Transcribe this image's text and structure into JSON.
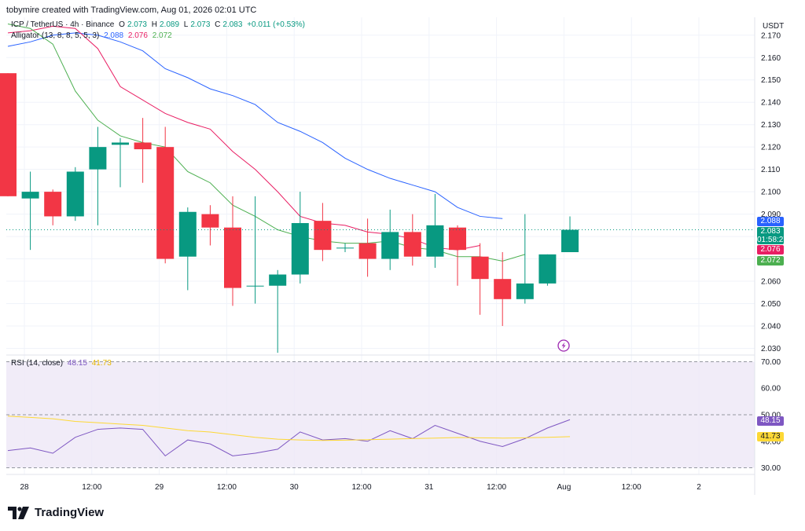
{
  "header": {
    "text": "tobymire created with TradingView.com, Aug 01, 2026 02:01 UTC"
  },
  "price_legend": {
    "symbol": "ICP / TetherUS · 4h · Binance",
    "o_label": "O",
    "o": "2.073",
    "h_label": "H",
    "h": "2.089",
    "l_label": "L",
    "l": "2.073",
    "c_label": "C",
    "c": "2.083",
    "change": "+0.011 (+0.53%)"
  },
  "alligator_legend": {
    "label": "Alligator (13, 8, 8, 5, 5, 3)",
    "jaw": "2.088",
    "teeth": "2.076",
    "lips": "2.072"
  },
  "rsi_legend": {
    "label": "RSI (14, close)",
    "rsi": "48.15",
    "ma": "41.73"
  },
  "currency": "USDT",
  "price_tags": {
    "jaw": "2.088",
    "close": "2.083",
    "countdown": "01:58:27",
    "teeth": "2.076",
    "lips": "2.072",
    "rsi": "48.15",
    "rsi_ma": "41.73"
  },
  "footer": {
    "brand": "TradingView"
  },
  "colors": {
    "up": "#089981",
    "down": "#f23645",
    "jaw": "#2962ff",
    "teeth": "#e91e63",
    "lips": "#4caf50",
    "rsi": "#7e57c2",
    "rsi_ma": "#fdd835",
    "rsi_band": "#ede7f6"
  },
  "chart_data": [
    {
      "type": "candlestick",
      "title": "ICP / TetherUS · 4h · Binance",
      "x_ticks": [
        "28",
        "12:00",
        "29",
        "12:00",
        "30",
        "12:00",
        "31",
        "12:00",
        "Aug",
        "12:00",
        "2"
      ],
      "y_ticks": [
        "2.170",
        "2.160",
        "2.150",
        "2.140",
        "2.130",
        "2.120",
        "2.110",
        "2.100",
        "2.090",
        "2.080",
        "2.070",
        "2.060",
        "2.050",
        "2.040",
        "2.030"
      ],
      "ylim": [
        2.027,
        2.178
      ],
      "candles": [
        {
          "o": 2.153,
          "h": 2.153,
          "l": 2.098,
          "c": 2.098
        },
        {
          "o": 2.097,
          "h": 2.109,
          "l": 2.074,
          "c": 2.1
        },
        {
          "o": 2.1,
          "h": 2.101,
          "l": 2.085,
          "c": 2.089
        },
        {
          "o": 2.089,
          "h": 2.111,
          "l": 2.087,
          "c": 2.109
        },
        {
          "o": 2.11,
          "h": 2.129,
          "l": 2.085,
          "c": 2.12
        },
        {
          "o": 2.121,
          "h": 2.124,
          "l": 2.102,
          "c": 2.122
        },
        {
          "o": 2.122,
          "h": 2.133,
          "l": 2.104,
          "c": 2.119
        },
        {
          "o": 2.12,
          "h": 2.129,
          "l": 2.068,
          "c": 2.07
        },
        {
          "o": 2.071,
          "h": 2.093,
          "l": 2.056,
          "c": 2.091
        },
        {
          "o": 2.09,
          "h": 2.094,
          "l": 2.076,
          "c": 2.084
        },
        {
          "o": 2.084,
          "h": 2.098,
          "l": 2.049,
          "c": 2.057
        },
        {
          "o": 2.058,
          "h": 2.098,
          "l": 2.05,
          "c": 2.058
        },
        {
          "o": 2.058,
          "h": 2.065,
          "l": 2.028,
          "c": 2.063
        },
        {
          "o": 2.063,
          "h": 2.1,
          "l": 2.059,
          "c": 2.086
        },
        {
          "o": 2.087,
          "h": 2.095,
          "l": 2.069,
          "c": 2.074
        },
        {
          "o": 2.075,
          "h": 2.077,
          "l": 2.073,
          "c": 2.075
        },
        {
          "o": 2.077,
          "h": 2.088,
          "l": 2.062,
          "c": 2.07
        },
        {
          "o": 2.07,
          "h": 2.092,
          "l": 2.065,
          "c": 2.082
        },
        {
          "o": 2.082,
          "h": 2.09,
          "l": 2.067,
          "c": 2.071
        },
        {
          "o": 2.071,
          "h": 2.099,
          "l": 2.066,
          "c": 2.085
        },
        {
          "o": 2.084,
          "h": 2.085,
          "l": 2.058,
          "c": 2.074
        },
        {
          "o": 2.071,
          "h": 2.077,
          "l": 2.045,
          "c": 2.061
        },
        {
          "o": 2.061,
          "h": 2.073,
          "l": 2.04,
          "c": 2.052
        },
        {
          "o": 2.052,
          "h": 2.09,
          "l": 2.05,
          "c": 2.059
        },
        {
          "o": 2.059,
          "h": 2.072,
          "l": 2.058,
          "c": 2.072
        },
        {
          "o": 2.073,
          "h": 2.089,
          "l": 2.073,
          "c": 2.083
        }
      ],
      "series": [
        {
          "key": "jaw",
          "start": 0,
          "values": [
            2.165,
            2.167,
            2.17,
            2.171,
            2.17,
            2.167,
            2.163,
            2.155,
            2.151,
            2.146,
            2.143,
            2.139,
            2.131,
            2.127,
            2.122,
            2.115,
            2.11,
            2.106,
            2.103,
            2.1,
            2.093,
            2.089,
            2.088
          ]
        },
        {
          "key": "teeth",
          "start": 0,
          "values": [
            2.171,
            2.172,
            2.174,
            2.173,
            2.164,
            2.147,
            2.141,
            2.135,
            2.131,
            2.128,
            2.118,
            2.11,
            2.1,
            2.089,
            2.086,
            2.085,
            2.082,
            2.081,
            2.079,
            2.075,
            2.074,
            2.076
          ]
        },
        {
          "key": "lips",
          "start": 0,
          "values": [
            2.175,
            2.173,
            2.166,
            2.145,
            2.132,
            2.125,
            2.122,
            2.12,
            2.109,
            2.104,
            2.094,
            2.089,
            2.083,
            2.08,
            2.078,
            2.077,
            2.077,
            2.078,
            2.075,
            2.074,
            2.071,
            2.071,
            2.069,
            2.072
          ]
        }
      ]
    },
    {
      "type": "line",
      "title": "RSI (14, close)",
      "y_ticks": [
        "70.00",
        "60.00",
        "50.00",
        "40.00",
        "30.00"
      ],
      "ylim": [
        27.5,
        72.5
      ],
      "band": [
        30,
        70
      ],
      "series": [
        {
          "key": "rsi",
          "name": "RSI",
          "start": 0,
          "values": [
            36.5,
            37.5,
            35.5,
            41.5,
            44.5,
            45.0,
            44.5,
            34.5,
            40.5,
            39.0,
            34.5,
            35.5,
            37.0,
            43.5,
            40.5,
            41.0,
            40.0,
            44.0,
            41.0,
            46.0,
            43.0,
            40.0,
            38.0,
            41.0,
            45.0,
            48.15
          ]
        },
        {
          "key": "rsi_ma",
          "name": "RSI-based MA",
          "start": 0,
          "values": [
            49.5,
            49.0,
            48.5,
            47.5,
            47.0,
            46.5,
            46.0,
            45.0,
            44.0,
            43.5,
            42.5,
            41.5,
            40.8,
            40.5,
            40.3,
            40.4,
            40.6,
            40.8,
            41.0,
            41.2,
            41.4,
            41.3,
            41.2,
            41.3,
            41.5,
            41.73
          ]
        }
      ]
    }
  ]
}
